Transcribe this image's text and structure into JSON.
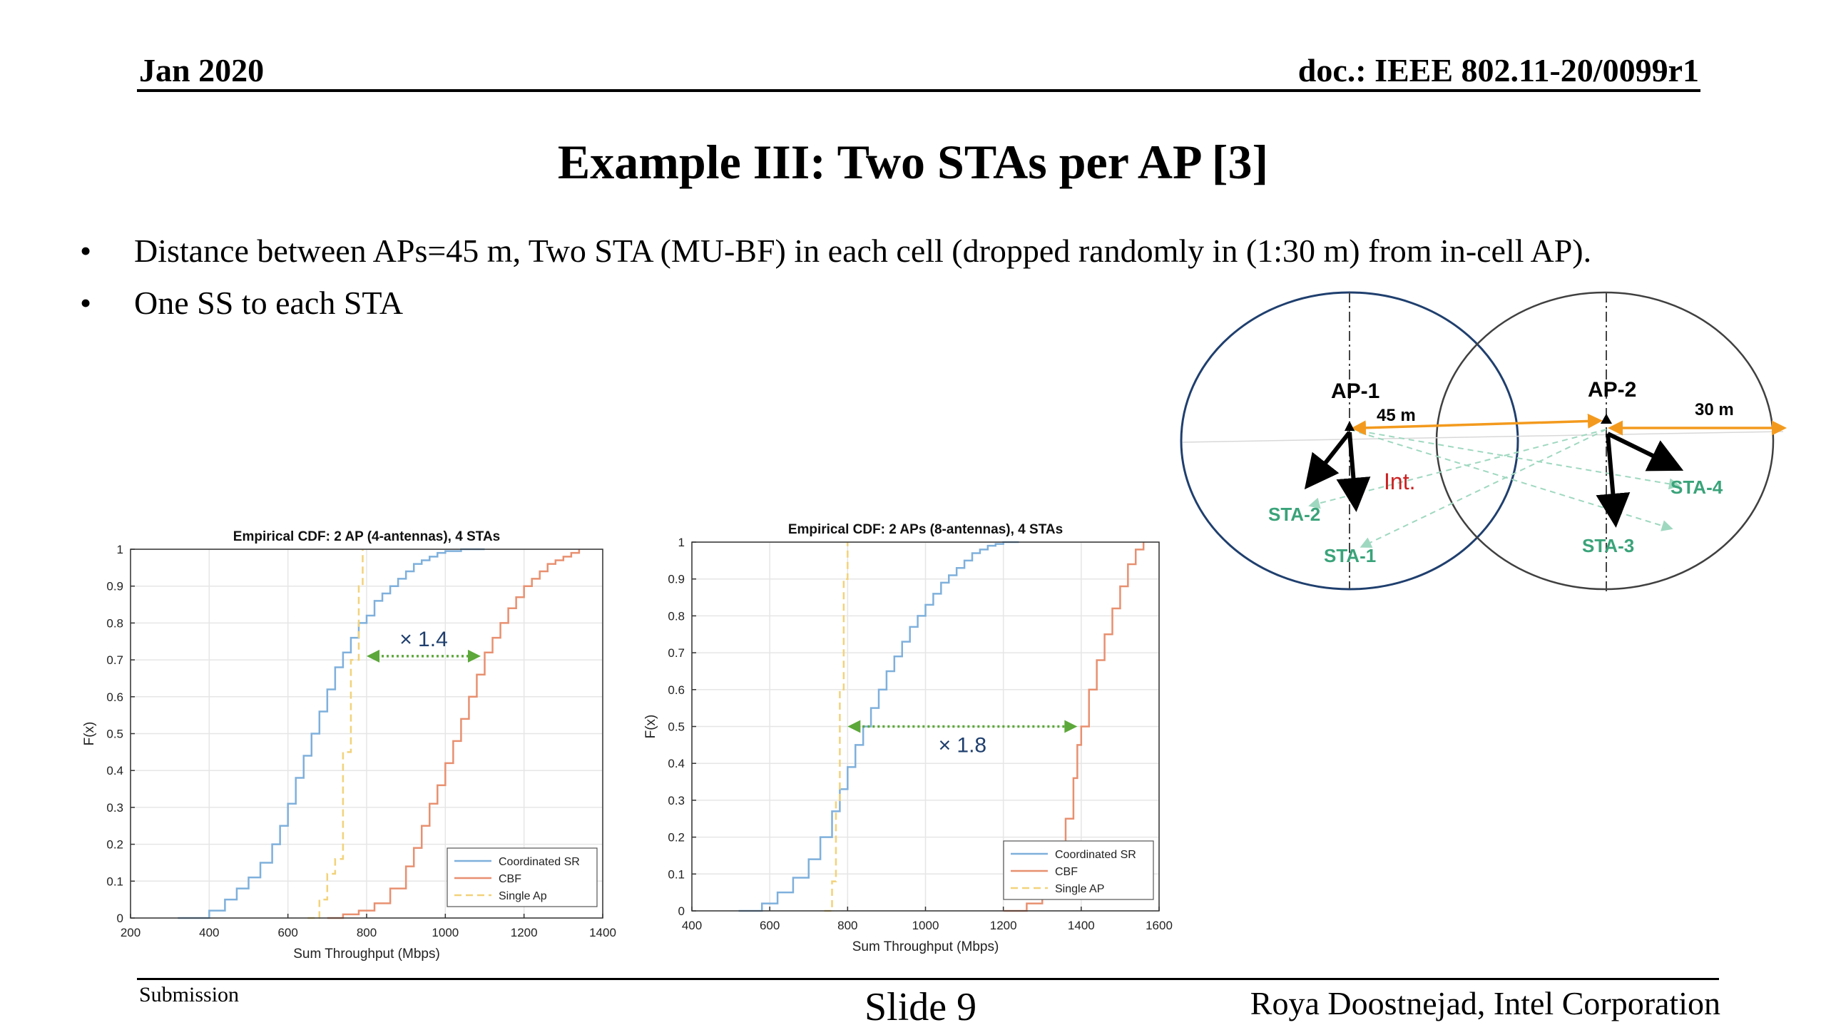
{
  "header": {
    "date": "Jan 2020",
    "doc_id": "doc.: IEEE 802.11-20/0099r1"
  },
  "title": "Example III: Two STAs per AP [3]",
  "bullets": [
    "Distance between APs=45 m, Two STA (MU-BF) in each cell (dropped randomly in (1:30 m) from in-cell AP).",
    "One SS to each STA"
  ],
  "diagram": {
    "ap1_label": "AP-1",
    "ap2_label": "AP-2",
    "distance_label": "45 m",
    "radius_label": "30 m",
    "interference_label": "Int.",
    "sta_labels": [
      "STA-1",
      "STA-2",
      "STA-3",
      "STA-4"
    ],
    "colors": {
      "cell1": "#1f3f6e",
      "cell2": "#404040",
      "distance": "#f39a1e",
      "sta": "#3aa37a",
      "int": "#cc2222"
    }
  },
  "chart_data": [
    {
      "type": "line",
      "title": "Empirical CDF: 2 AP (4-antennas), 4 STAs",
      "xlabel": "Sum Throughput (Mbps)",
      "ylabel": "F(x)",
      "xlim": [
        200,
        1400
      ],
      "ylim": [
        0,
        1
      ],
      "xticks": [
        200,
        400,
        600,
        800,
        1000,
        1200,
        1400
      ],
      "yticks": [
        0,
        0.1,
        0.2,
        0.3,
        0.4,
        0.5,
        0.6,
        0.7,
        0.8,
        0.9,
        1
      ],
      "grid": true,
      "legend": "bottom-right",
      "annotation": {
        "text": "× 1.4",
        "x1": 800,
        "x2": 1090,
        "y": 0.71
      },
      "series": [
        {
          "name": "Coordinated SR",
          "color": "#7fb0dc",
          "dash": "",
          "x": [
            320,
            400,
            440,
            470,
            500,
            530,
            560,
            580,
            600,
            620,
            640,
            660,
            680,
            700,
            720,
            740,
            760,
            780,
            800,
            820,
            840,
            860,
            880,
            900,
            920,
            940,
            960,
            980,
            1000,
            1040,
            1100
          ],
          "y": [
            0,
            0.02,
            0.05,
            0.08,
            0.11,
            0.15,
            0.2,
            0.25,
            0.31,
            0.38,
            0.44,
            0.5,
            0.56,
            0.62,
            0.68,
            0.72,
            0.76,
            0.8,
            0.82,
            0.86,
            0.88,
            0.9,
            0.92,
            0.94,
            0.96,
            0.97,
            0.98,
            0.99,
            0.995,
            1,
            1
          ]
        },
        {
          "name": "CBF",
          "color": "#e89070",
          "dash": "",
          "x": [
            700,
            740,
            780,
            820,
            860,
            900,
            920,
            940,
            960,
            980,
            1000,
            1020,
            1040,
            1060,
            1080,
            1100,
            1120,
            1140,
            1160,
            1180,
            1200,
            1220,
            1240,
            1260,
            1280,
            1300,
            1320,
            1340
          ],
          "y": [
            0,
            0.01,
            0.02,
            0.04,
            0.08,
            0.14,
            0.19,
            0.25,
            0.31,
            0.36,
            0.42,
            0.48,
            0.54,
            0.6,
            0.66,
            0.72,
            0.76,
            0.8,
            0.84,
            0.87,
            0.9,
            0.92,
            0.94,
            0.96,
            0.97,
            0.98,
            0.99,
            1
          ]
        },
        {
          "name": "Single Ap",
          "color": "#f2d27a",
          "dash": "10,6",
          "x": [
            650,
            680,
            700,
            720,
            740,
            760,
            780,
            790
          ],
          "y": [
            0,
            0.05,
            0.12,
            0.16,
            0.45,
            0.7,
            0.9,
            1
          ]
        }
      ]
    },
    {
      "type": "line",
      "title": "Empirical CDF: 2 APs (8-antennas), 4 STAs",
      "xlabel": "Sum Throughput (Mbps)",
      "ylabel": "F(x)",
      "xlim": [
        400,
        1600
      ],
      "ylim": [
        0,
        1
      ],
      "xticks": [
        400,
        600,
        800,
        1000,
        1200,
        1400,
        1600
      ],
      "yticks": [
        0,
        0.1,
        0.2,
        0.3,
        0.4,
        0.5,
        0.6,
        0.7,
        0.8,
        0.9,
        1
      ],
      "grid": true,
      "legend": "bottom-right",
      "annotation": {
        "text": "× 1.8",
        "x1": 800,
        "x2": 1390,
        "y": 0.5
      },
      "series": [
        {
          "name": "Coordinated SR",
          "color": "#7fb0dc",
          "dash": "",
          "x": [
            520,
            580,
            620,
            660,
            700,
            730,
            760,
            780,
            800,
            820,
            840,
            860,
            880,
            900,
            920,
            940,
            960,
            980,
            1000,
            1020,
            1040,
            1060,
            1080,
            1100,
            1120,
            1140,
            1160,
            1180,
            1200,
            1240
          ],
          "y": [
            0,
            0.02,
            0.05,
            0.09,
            0.14,
            0.2,
            0.27,
            0.33,
            0.39,
            0.45,
            0.5,
            0.55,
            0.6,
            0.65,
            0.69,
            0.73,
            0.77,
            0.8,
            0.83,
            0.86,
            0.89,
            0.91,
            0.93,
            0.95,
            0.97,
            0.98,
            0.99,
            0.995,
            1,
            1
          ]
        },
        {
          "name": "CBF",
          "color": "#e89070",
          "dash": "",
          "x": [
            1200,
            1260,
            1300,
            1320,
            1340,
            1360,
            1380,
            1390,
            1400,
            1420,
            1440,
            1460,
            1480,
            1500,
            1520,
            1540,
            1560
          ],
          "y": [
            0,
            0.02,
            0.05,
            0.1,
            0.17,
            0.25,
            0.36,
            0.45,
            0.5,
            0.6,
            0.68,
            0.75,
            0.82,
            0.88,
            0.94,
            0.98,
            1
          ]
        },
        {
          "name": "Single AP",
          "color": "#f2d27a",
          "dash": "10,6",
          "x": [
            740,
            760,
            770,
            780,
            790,
            800
          ],
          "y": [
            0,
            0.08,
            0.3,
            0.6,
            0.9,
            1
          ]
        }
      ]
    }
  ],
  "footer": {
    "left": "Submission",
    "center": "Slide 9",
    "right": "Roya Doostnejad, Intel Corporation"
  }
}
